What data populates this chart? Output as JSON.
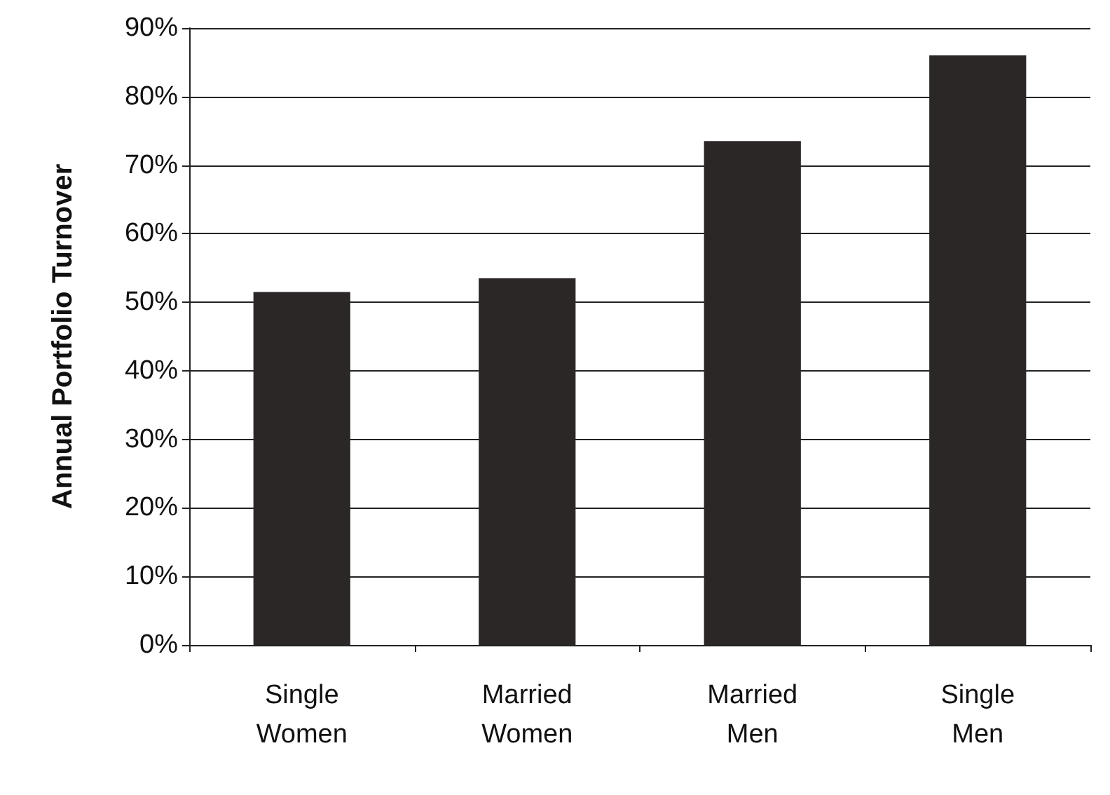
{
  "chart_data": {
    "type": "bar",
    "ylabel": "Annual Portfolio Turnover",
    "categories": [
      "Single\nWomen",
      "Married\nWomen",
      "Married\nMen",
      "Single\nMen"
    ],
    "values": [
      51.5,
      53.5,
      73.5,
      86
    ],
    "color": "#2b2727",
    "ylim": [
      0,
      90
    ],
    "yticks": [
      {
        "value": 0,
        "label": "0%"
      },
      {
        "value": 10,
        "label": "10%"
      },
      {
        "value": 20,
        "label": "20%"
      },
      {
        "value": 30,
        "label": "30%"
      },
      {
        "value": 40,
        "label": "40%"
      },
      {
        "value": 50,
        "label": "50%"
      },
      {
        "value": 60,
        "label": "60%"
      },
      {
        "value": 70,
        "label": "70%"
      },
      {
        "value": 80,
        "label": "80%"
      },
      {
        "value": 90,
        "label": "90%"
      }
    ],
    "grid": "y"
  }
}
